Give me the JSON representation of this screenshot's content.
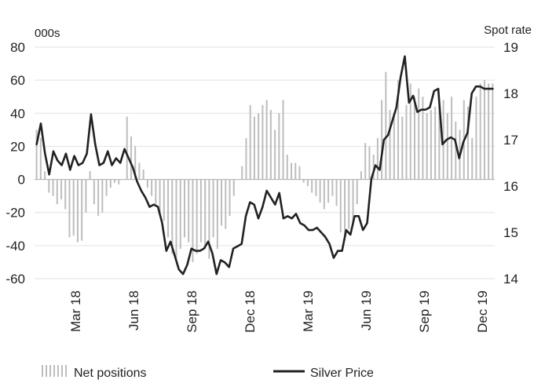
{
  "chart_data": {
    "type": "bar+line",
    "title": "",
    "left_axis": {
      "unit": "000s",
      "ylim": [
        -60,
        80
      ],
      "ticks": [
        "80",
        "60",
        "40",
        "20",
        "0",
        "-20",
        "-40",
        "-60"
      ]
    },
    "right_axis": {
      "unit": "Spot rate",
      "ylim": [
        14,
        19
      ],
      "ticks": [
        "19",
        "18",
        "17",
        "16",
        "15",
        "14"
      ]
    },
    "x_labels": [
      "Mar 18",
      "Jun 18",
      "Sep 18",
      "Dec 18",
      "Mar 19",
      "Jun 19",
      "Sep 19",
      "Dec 19"
    ],
    "grid": "horizontal",
    "legend_position": "bottom",
    "series": [
      {
        "name": "Net positions",
        "type": "bar",
        "axis": "left",
        "color": "#bdbdbd",
        "values": [
          30,
          25,
          5,
          -8,
          -10,
          -15,
          -12,
          -18,
          -35,
          -34,
          -38,
          -37,
          -20,
          5,
          -15,
          -22,
          -20,
          -10,
          -5,
          -2,
          -3,
          0,
          38,
          26,
          20,
          10,
          6,
          -5,
          -10,
          -15,
          -20,
          -25,
          -35,
          -45,
          -48,
          -42,
          -35,
          -38,
          -50,
          -45,
          -38,
          -42,
          -48,
          -35,
          -42,
          -28,
          -30,
          -22,
          -10,
          0,
          8,
          25,
          45,
          38,
          40,
          45,
          48,
          42,
          30,
          40,
          48,
          15,
          10,
          10,
          8,
          -2,
          -4,
          -8,
          -10,
          -14,
          -18,
          -14,
          -10,
          -16,
          -32,
          -36,
          -30,
          -28,
          -15,
          5,
          22,
          20,
          15,
          25,
          48,
          65,
          42,
          40,
          60,
          38,
          45,
          58,
          50,
          55,
          50,
          40,
          42,
          44,
          46,
          48,
          40,
          50,
          35,
          30,
          48,
          44,
          25,
          50,
          58,
          60,
          58,
          58
        ]
      },
      {
        "name": "Silver Price",
        "type": "line",
        "axis": "right",
        "color": "#222222",
        "values": [
          16.9,
          17.35,
          16.7,
          16.25,
          16.75,
          16.55,
          16.45,
          16.7,
          16.35,
          16.65,
          16.45,
          16.5,
          16.7,
          17.55,
          16.9,
          16.45,
          16.5,
          16.75,
          16.45,
          16.6,
          16.5,
          16.8,
          16.6,
          16.4,
          16.1,
          15.9,
          15.75,
          15.55,
          15.6,
          15.55,
          15.2,
          14.6,
          14.8,
          14.5,
          14.2,
          14.1,
          14.3,
          14.65,
          14.6,
          14.6,
          14.65,
          14.8,
          14.55,
          14.1,
          14.4,
          14.35,
          14.25,
          14.65,
          14.7,
          14.75,
          15.35,
          15.65,
          15.6,
          15.3,
          15.55,
          15.9,
          15.75,
          15.6,
          15.85,
          15.3,
          15.35,
          15.3,
          15.4,
          15.2,
          15.15,
          15.05,
          15.05,
          15.1,
          15.0,
          14.9,
          14.75,
          14.45,
          14.6,
          14.6,
          15.05,
          14.95,
          15.35,
          15.35,
          15.05,
          15.2,
          16.15,
          16.45,
          16.35,
          17.0,
          17.1,
          17.4,
          17.7,
          18.35,
          18.8,
          17.8,
          17.95,
          17.6,
          17.65,
          17.65,
          17.7,
          18.05,
          18.1,
          16.9,
          17.0,
          17.05,
          17.0,
          16.6,
          16.95,
          17.15,
          18.0,
          18.15,
          18.15,
          18.1,
          18.1,
          18.1
        ]
      }
    ]
  }
}
